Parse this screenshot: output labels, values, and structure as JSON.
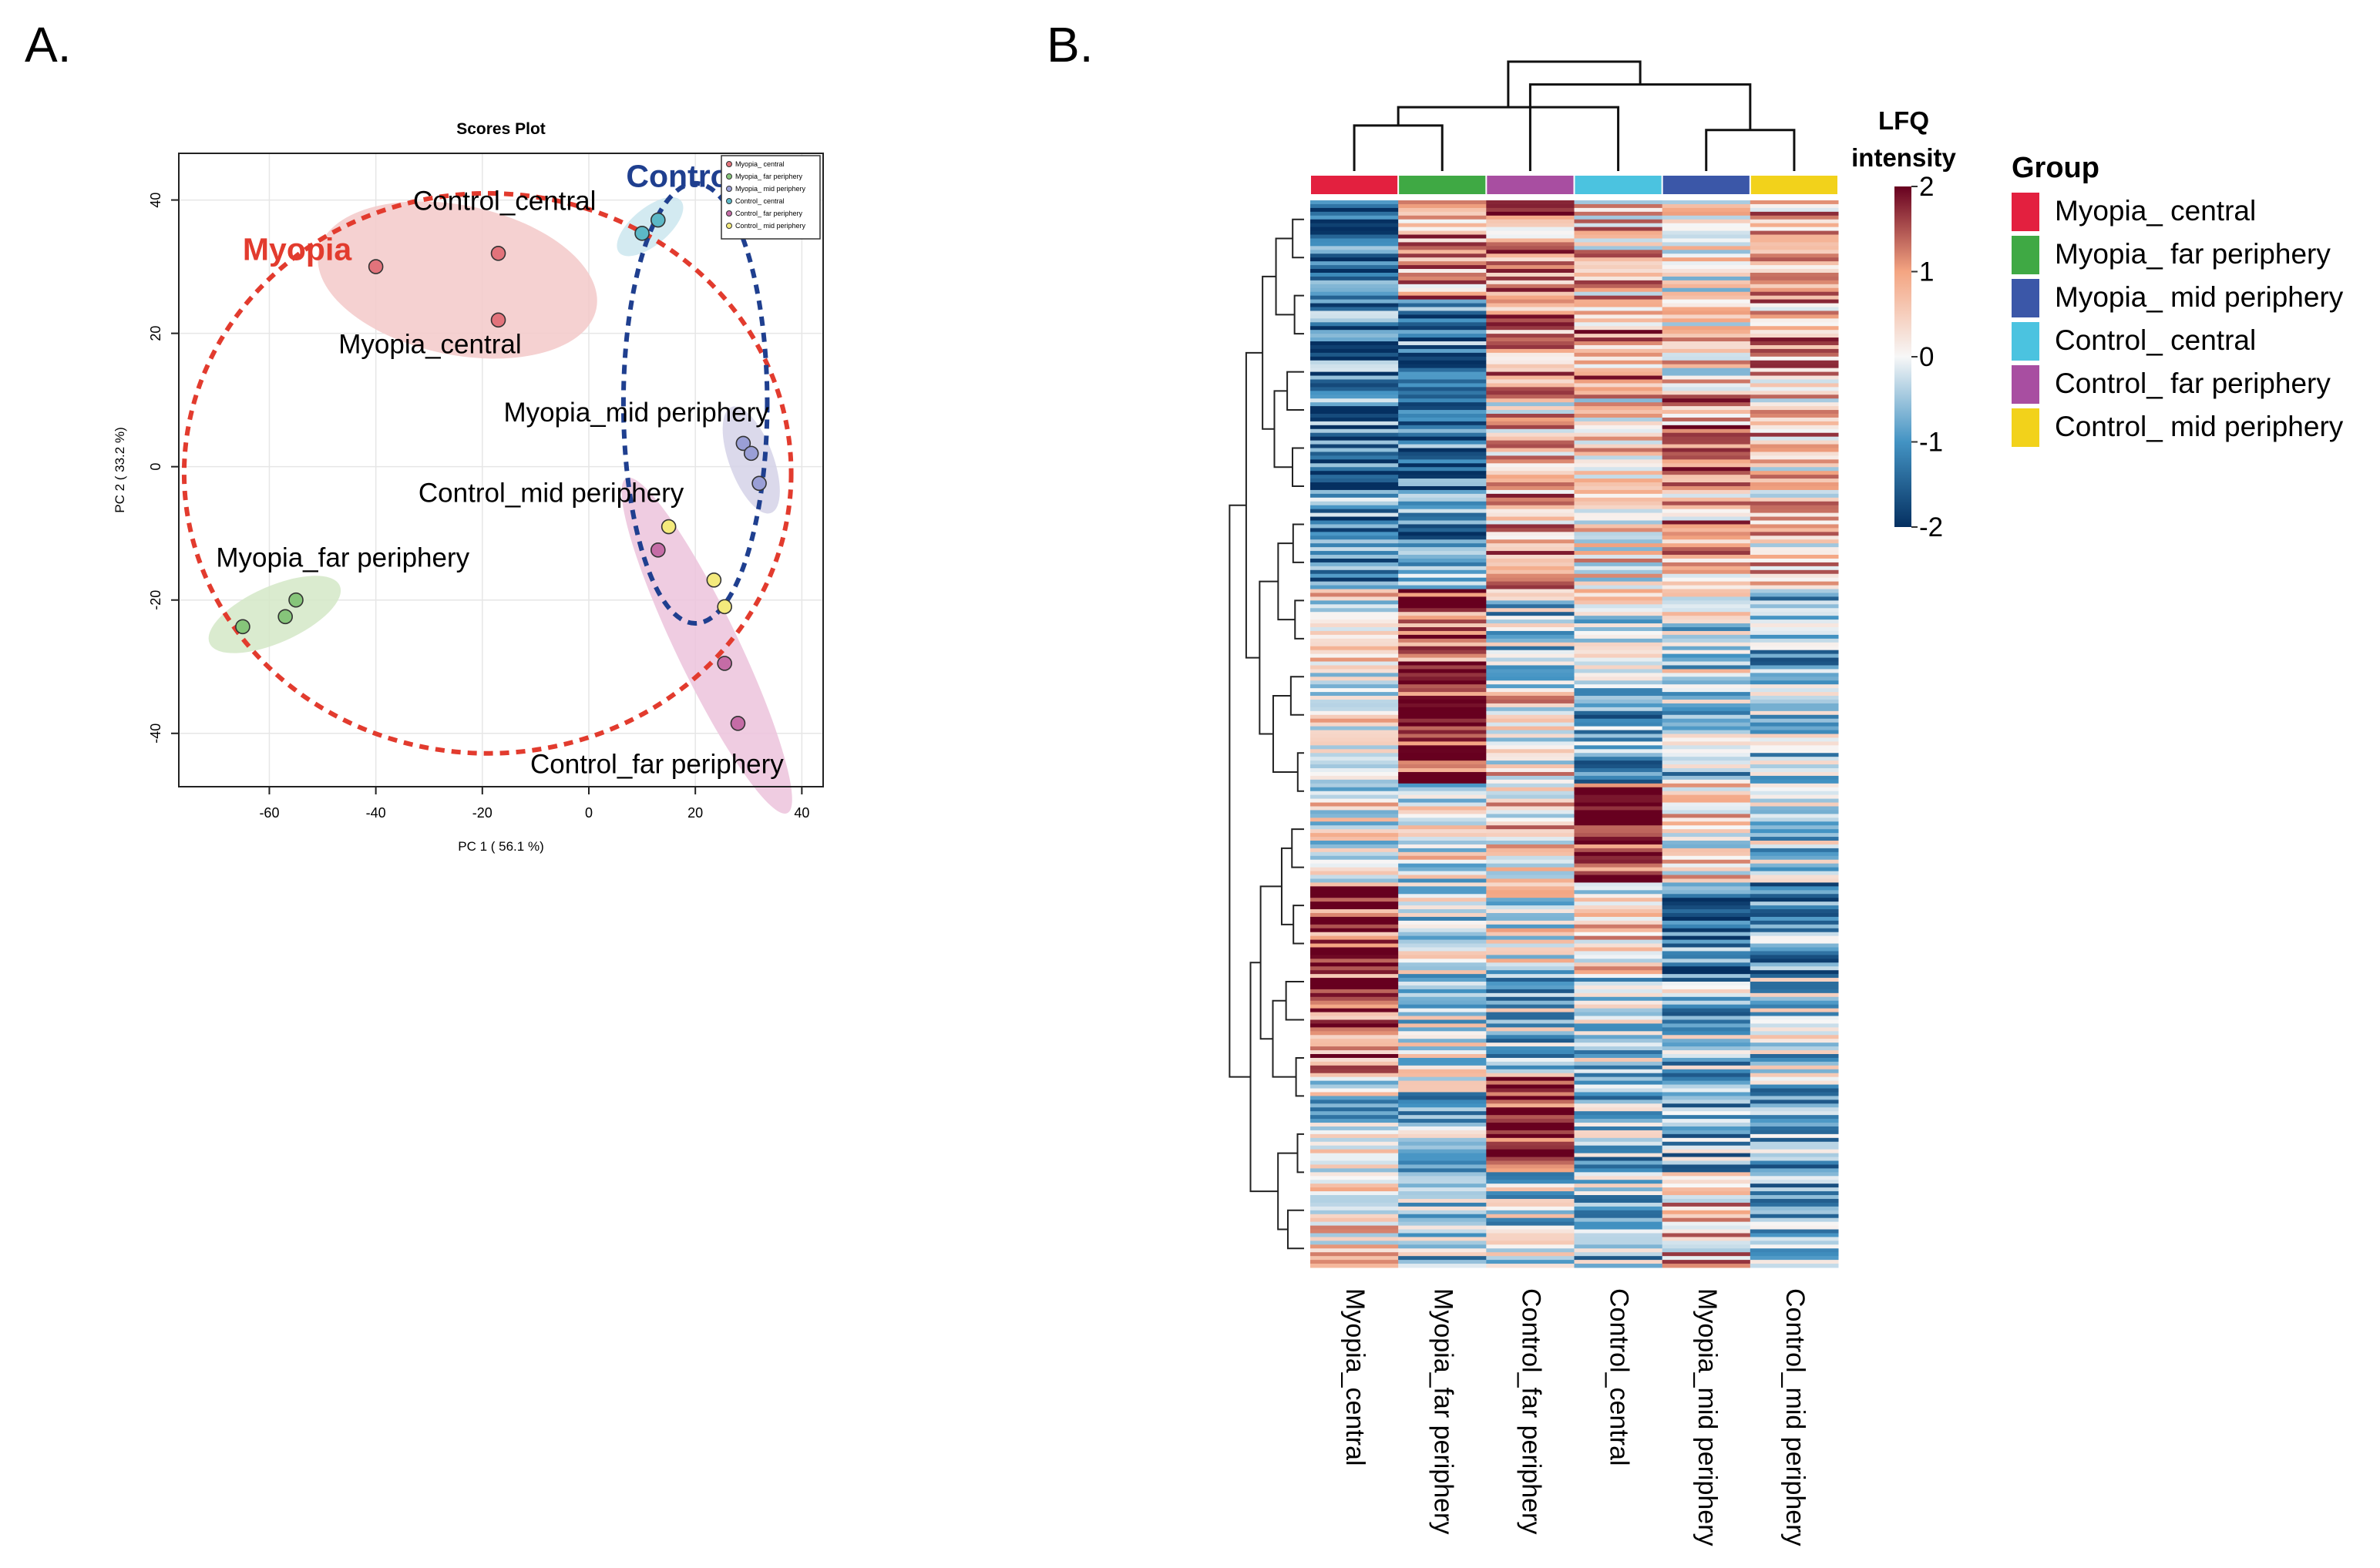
{
  "panels": {
    "a_label": "A.",
    "b_label": "B."
  },
  "chart_data": [
    {
      "type": "scatter",
      "title": "Scores Plot",
      "xlabel": "PC 1 ( 56.1 %)",
      "ylabel": "PC 2 ( 33.2 %)",
      "xlim": [
        -77,
        44
      ],
      "ylim": [
        -48,
        47
      ],
      "xticks": [
        -60,
        -40,
        -20,
        0,
        20,
        40
      ],
      "yticks": [
        -40,
        -20,
        0,
        20,
        40
      ],
      "grid": true,
      "legend": {
        "placement": "top-right",
        "entries": [
          "Myopia_ central",
          "Myopia_ far periphery",
          "Myopia_ mid periphery",
          "Control_ central",
          "Control_ far periphery",
          "Control_ mid periphery"
        ]
      },
      "series": [
        {
          "name": "Myopia_central",
          "color": "#e2737b",
          "ellipse": "#f3c9c9",
          "points": [
            [
              -40,
              30
            ],
            [
              -17,
              32
            ],
            [
              -17,
              22
            ]
          ]
        },
        {
          "name": "Myopia_far periphery",
          "color": "#86c57a",
          "ellipse": "#d3e8c7",
          "points": [
            [
              -65,
              -24
            ],
            [
              -55,
              -20
            ],
            [
              -57,
              -22.5
            ]
          ]
        },
        {
          "name": "Myopia_mid periphery",
          "color": "#9a9fd6",
          "ellipse": "#d5d2e8",
          "points": [
            [
              29,
              3.5
            ],
            [
              30.5,
              2
            ],
            [
              32,
              -2.5
            ]
          ]
        },
        {
          "name": "Control_central",
          "color": "#5cb8c6",
          "ellipse": "#cbe6ef",
          "points": [
            [
              10,
              35
            ],
            [
              13,
              37
            ]
          ]
        },
        {
          "name": "Control_far periphery",
          "color": "#c56ca6",
          "ellipse": "#ecc3dc",
          "points": [
            [
              13,
              -12.5
            ],
            [
              25.5,
              -29.5
            ],
            [
              28,
              -38.5
            ]
          ]
        },
        {
          "name": "Control_mid periphery",
          "color": "#f4ea7c",
          "ellipse": null,
          "points": [
            [
              15,
              -9
            ],
            [
              23.5,
              -17
            ],
            [
              25.5,
              -21
            ]
          ]
        }
      ],
      "annotations": [
        {
          "text": "Myopia",
          "x": -65,
          "y": 31,
          "color": "#e23b2e"
        },
        {
          "text": "Control",
          "x": 7,
          "y": 42,
          "color": "#1f3f8f"
        },
        {
          "text": "Control_central",
          "x": -33,
          "y": 38.5
        },
        {
          "text": "Myopia_central",
          "x": -47,
          "y": 17
        },
        {
          "text": "Myopia_mid periphery",
          "x": -16,
          "y": 6.8
        },
        {
          "text": "Control_mid periphery",
          "x": -32,
          "y": -5.3
        },
        {
          "text": "Myopia_far periphery",
          "x": -70,
          "y": -15
        },
        {
          "text": "Control_far periphery",
          "x": -11,
          "y": -46
        }
      ],
      "group_ellipses": [
        {
          "name": "Myopia",
          "color": "#e23b2e",
          "cx": -19,
          "cy": -1,
          "rx": 57,
          "ry": 42
        },
        {
          "name": "Control",
          "color": "#1f3f8f",
          "cx": 20,
          "cy": 9.5,
          "rx": 13.5,
          "ry": 33
        }
      ]
    },
    {
      "type": "heatmap",
      "title": "",
      "columns": [
        "Myopia_central",
        "Myopia_far periphery",
        "Control_far periphery",
        "Control_central",
        "Myopia_mid periphery",
        "Control_mid periphery"
      ],
      "column_group_colors": [
        "#e3203f",
        "#3fa944",
        "#a84ea1",
        "#4bc3e0",
        "#3b57a8",
        "#f2d21b"
      ],
      "rows": 280,
      "colorbar": {
        "title_line1": "LFQ",
        "title_line2": "intensity",
        "min": -2,
        "max": 2,
        "ticks": [
          "2",
          "1",
          "0",
          "-1",
          "-2"
        ]
      },
      "col_dendrogram": [
        [
          0,
          1,
          1.0
        ],
        [
          4,
          5,
          0.9
        ],
        [
          3,
          6,
          1.4
        ],
        [
          2,
          7,
          1.9
        ],
        [
          8,
          9,
          2.4
        ]
      ],
      "row_block_levels": [
        [
          -1.5,
          0.8,
          0.9,
          0.6,
          0.3,
          0.7
        ],
        [
          -1.2,
          -1.3,
          0.9,
          0.9,
          0.3,
          0.8
        ],
        [
          -1.2,
          -1.3,
          0.5,
          0.4,
          0.9,
          0.6
        ],
        [
          -1.0,
          -1.0,
          0.8,
          0.3,
          0.8,
          0.5
        ],
        [
          0.2,
          1.5,
          -0.5,
          0.0,
          -0.2,
          -0.6
        ],
        [
          0.2,
          1.9,
          0.4,
          -0.7,
          -0.7,
          -0.6
        ],
        [
          0.1,
          0.0,
          0.5,
          1.8,
          0.2,
          -0.4
        ],
        [
          1.5,
          -0.3,
          0.0,
          0.3,
          -1.2,
          -1.0
        ],
        [
          1.4,
          -0.3,
          -0.5,
          -0.4,
          -0.6,
          -0.4
        ],
        [
          -0.3,
          -0.5,
          1.8,
          -0.6,
          -0.7,
          -0.7
        ],
        [
          0.6,
          -0.5,
          -0.3,
          -0.6,
          0.6,
          -0.8
        ]
      ]
    }
  ],
  "group_legend": {
    "title": "Group",
    "items": [
      {
        "label": "Myopia_ central",
        "color": "#e3203f"
      },
      {
        "label": "Myopia_ far periphery",
        "color": "#3fa944"
      },
      {
        "label": "Myopia_ mid periphery",
        "color": "#3b57a8"
      },
      {
        "label": "Control_ central",
        "color": "#4bc3e0"
      },
      {
        "label": "Control_ far periphery",
        "color": "#a84ea1"
      },
      {
        "label": "Control_ mid periphery",
        "color": "#f2d21b"
      }
    ]
  }
}
